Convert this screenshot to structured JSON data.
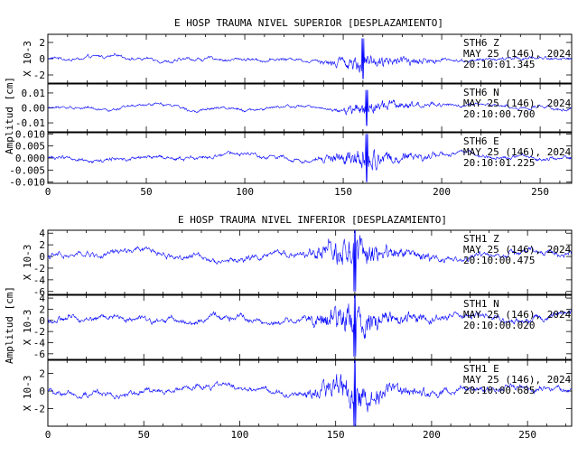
{
  "figures": [
    {
      "title": "E HOSP TRAUMA NIVEL SUPERIOR [DESPLAZAMIENTO]",
      "ylabel": "Amplitud [cm]",
      "panels": [
        {
          "id": "top-1",
          "station": "STH6  Z",
          "date": "MAY 25 (146), 2024",
          "time": "20:10:01.345",
          "scale_label": "X 10-3",
          "ylim": [
            -3,
            3
          ],
          "yticks": [
            "2",
            "0",
            "-2"
          ],
          "ytick_values": [
            2,
            0,
            -2
          ]
        },
        {
          "id": "top-2",
          "station": "STH6  N",
          "date": "MAY 25 (146), 2024",
          "time": "20:10:00.700",
          "scale_label": "",
          "ylim": [
            -0.016,
            0.016
          ],
          "yticks": [
            "0.01",
            "0.00",
            "-0.01"
          ],
          "ytick_values": [
            0.01,
            0,
            -0.01
          ]
        },
        {
          "id": "top-3",
          "station": "STH6  E",
          "date": "MAY 25 (146), 2024",
          "time": "20:10:01.225",
          "scale_label": "",
          "ylim": [
            -0.0105,
            0.0105
          ],
          "yticks": [
            "0.010",
            "0.005",
            "0.000",
            "-0.005",
            "-0.010"
          ],
          "ytick_values": [
            0.01,
            0.005,
            0,
            -0.005,
            -0.01
          ]
        }
      ],
      "xaxis": {
        "ticks": [
          "0",
          "50",
          "100",
          "150",
          "200",
          "250"
        ],
        "tick_values": [
          0,
          50,
          100,
          150,
          200,
          250
        ],
        "xlim": [
          0,
          266
        ]
      }
    },
    {
      "title": "E HOSP TRAUMA NIVEL INFERIOR [DESPLAZAMIENTO]",
      "ylabel": "Amplitud [cm]",
      "panels": [
        {
          "id": "bot-1",
          "station": "STH1  Z",
          "date": "MAY 25 (146), 2024",
          "time": "20:10:00.475",
          "scale_label": "X 10-3",
          "ylim": [
            -6.5,
            4.5
          ],
          "yticks": [
            "4",
            "2",
            "0",
            "-2",
            "-4",
            "-6"
          ],
          "ytick_values": [
            4,
            2,
            0,
            -2,
            -4,
            -6
          ]
        },
        {
          "id": "bot-2",
          "station": "STH1  N",
          "date": "MAY 25 (146), 2024",
          "time": "20:10:00.020",
          "scale_label": "X 10-3",
          "ylim": [
            -7,
            4.5
          ],
          "yticks": [
            "4",
            "2",
            "0",
            "-2",
            "-4",
            "-6"
          ],
          "ytick_values": [
            4,
            2,
            0,
            -2,
            -4,
            -6
          ]
        },
        {
          "id": "bot-3",
          "station": "STH1  E",
          "date": "MAY 25 (146), 2024",
          "time": "20:10:00.685",
          "scale_label": "X 10-3",
          "ylim": [
            -4,
            3.5
          ],
          "yticks": [
            "2",
            "0",
            "-2"
          ],
          "ytick_values": [
            2,
            0,
            -2
          ]
        }
      ],
      "xaxis": {
        "ticks": [
          "0",
          "50",
          "100",
          "150",
          "200",
          "250"
        ],
        "tick_values": [
          0,
          50,
          100,
          150,
          200,
          250
        ],
        "xlim": [
          0,
          273
        ]
      }
    }
  ],
  "chart_data": [
    {
      "type": "line",
      "title": "E HOSP TRAUMA NIVEL SUPERIOR [DESPLAZAMIENTO]",
      "ylabel": "Amplitud [cm]",
      "xlim": [
        0,
        266
      ],
      "series": [
        {
          "name": "STH6  Z",
          "peak_abs": 2.5,
          "peak_time": 160,
          "strong_motion": [
            135,
            200
          ]
        },
        {
          "name": "STH6  N",
          "peak_abs": 0.012,
          "peak_time": 162,
          "strong_motion": [
            145,
            200
          ]
        },
        {
          "name": "STH6  E",
          "peak_abs": 0.01,
          "peak_time": 162,
          "strong_motion": [
            135,
            200
          ]
        }
      ]
    },
    {
      "type": "line",
      "title": "E HOSP TRAUMA NIVEL INFERIOR [DESPLAZAMIENTO]",
      "ylabel": "Amplitud [cm]",
      "xlim": [
        0,
        273
      ],
      "series": [
        {
          "name": "STH1  Z",
          "peak_abs": 6,
          "peak_time": 160,
          "strong_motion": [
            130,
            210
          ]
        },
        {
          "name": "STH1  N",
          "peak_abs": 6.5,
          "peak_time": 160,
          "strong_motion": [
            130,
            210
          ]
        },
        {
          "name": "STH1  E",
          "peak_abs": 4,
          "peak_time": 160,
          "strong_motion": [
            130,
            210
          ]
        }
      ]
    }
  ],
  "colors": {
    "trace": "#0000ff",
    "axes": "#000000",
    "background": "#ffffff"
  }
}
